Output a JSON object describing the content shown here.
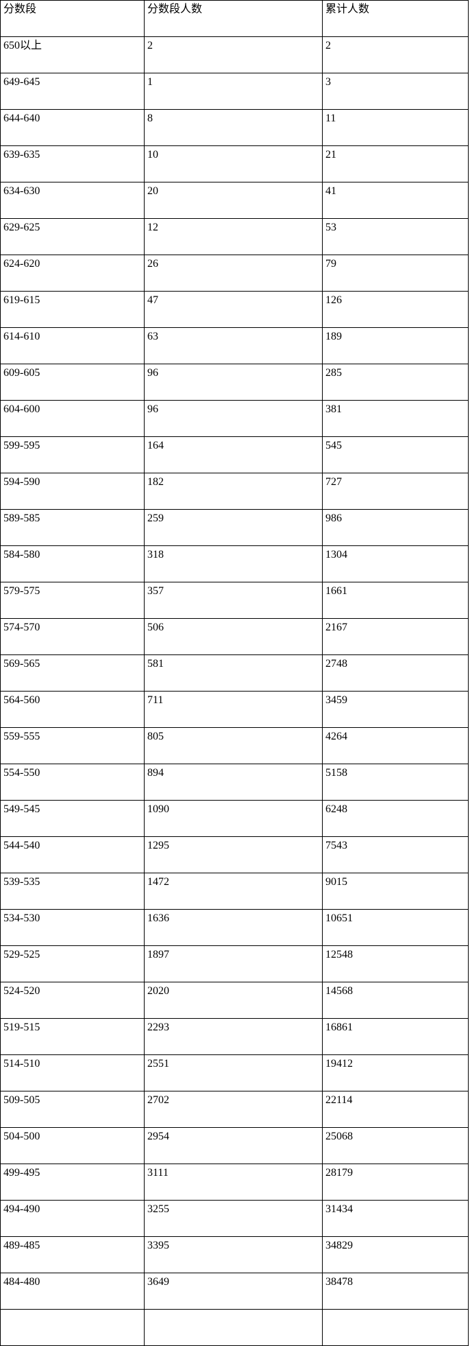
{
  "table": {
    "headers": [
      "分数段",
      "分数段人数",
      "累计人数"
    ],
    "rows": [
      [
        "650以上",
        "2",
        "2"
      ],
      [
        "649-645",
        "1",
        "3"
      ],
      [
        "644-640",
        "8",
        "11"
      ],
      [
        "639-635",
        "10",
        "21"
      ],
      [
        "634-630",
        "20",
        "41"
      ],
      [
        "629-625",
        "12",
        "53"
      ],
      [
        "624-620",
        "26",
        "79"
      ],
      [
        "619-615",
        "47",
        "126"
      ],
      [
        "614-610",
        "63",
        "189"
      ],
      [
        "609-605",
        "96",
        "285"
      ],
      [
        "604-600",
        "96",
        "381"
      ],
      [
        "599-595",
        "164",
        "545"
      ],
      [
        "594-590",
        "182",
        "727"
      ],
      [
        "589-585",
        "259",
        "986"
      ],
      [
        "584-580",
        "318",
        "1304"
      ],
      [
        "579-575",
        "357",
        "1661"
      ],
      [
        "574-570",
        "506",
        "2167"
      ],
      [
        "569-565",
        "581",
        "2748"
      ],
      [
        "564-560",
        "711",
        "3459"
      ],
      [
        "559-555",
        "805",
        "4264"
      ],
      [
        "554-550",
        "894",
        "5158"
      ],
      [
        "549-545",
        "1090",
        "6248"
      ],
      [
        "544-540",
        "1295",
        "7543"
      ],
      [
        "539-535",
        "1472",
        "9015"
      ],
      [
        "534-530",
        "1636",
        "10651"
      ],
      [
        "529-525",
        "1897",
        "12548"
      ],
      [
        "524-520",
        "2020",
        "14568"
      ],
      [
        "519-515",
        "2293",
        "16861"
      ],
      [
        "514-510",
        "2551",
        "19412"
      ],
      [
        "509-505",
        "2702",
        "22114"
      ],
      [
        "504-500",
        "2954",
        "25068"
      ],
      [
        "499-495",
        "3111",
        "28179"
      ],
      [
        "494-490",
        "3255",
        "31434"
      ],
      [
        "489-485",
        "3395",
        "34829"
      ],
      [
        "484-480",
        "3649",
        "38478"
      ]
    ]
  },
  "colors": {
    "border": "#000000",
    "text": "#000000",
    "background": "#ffffff"
  }
}
